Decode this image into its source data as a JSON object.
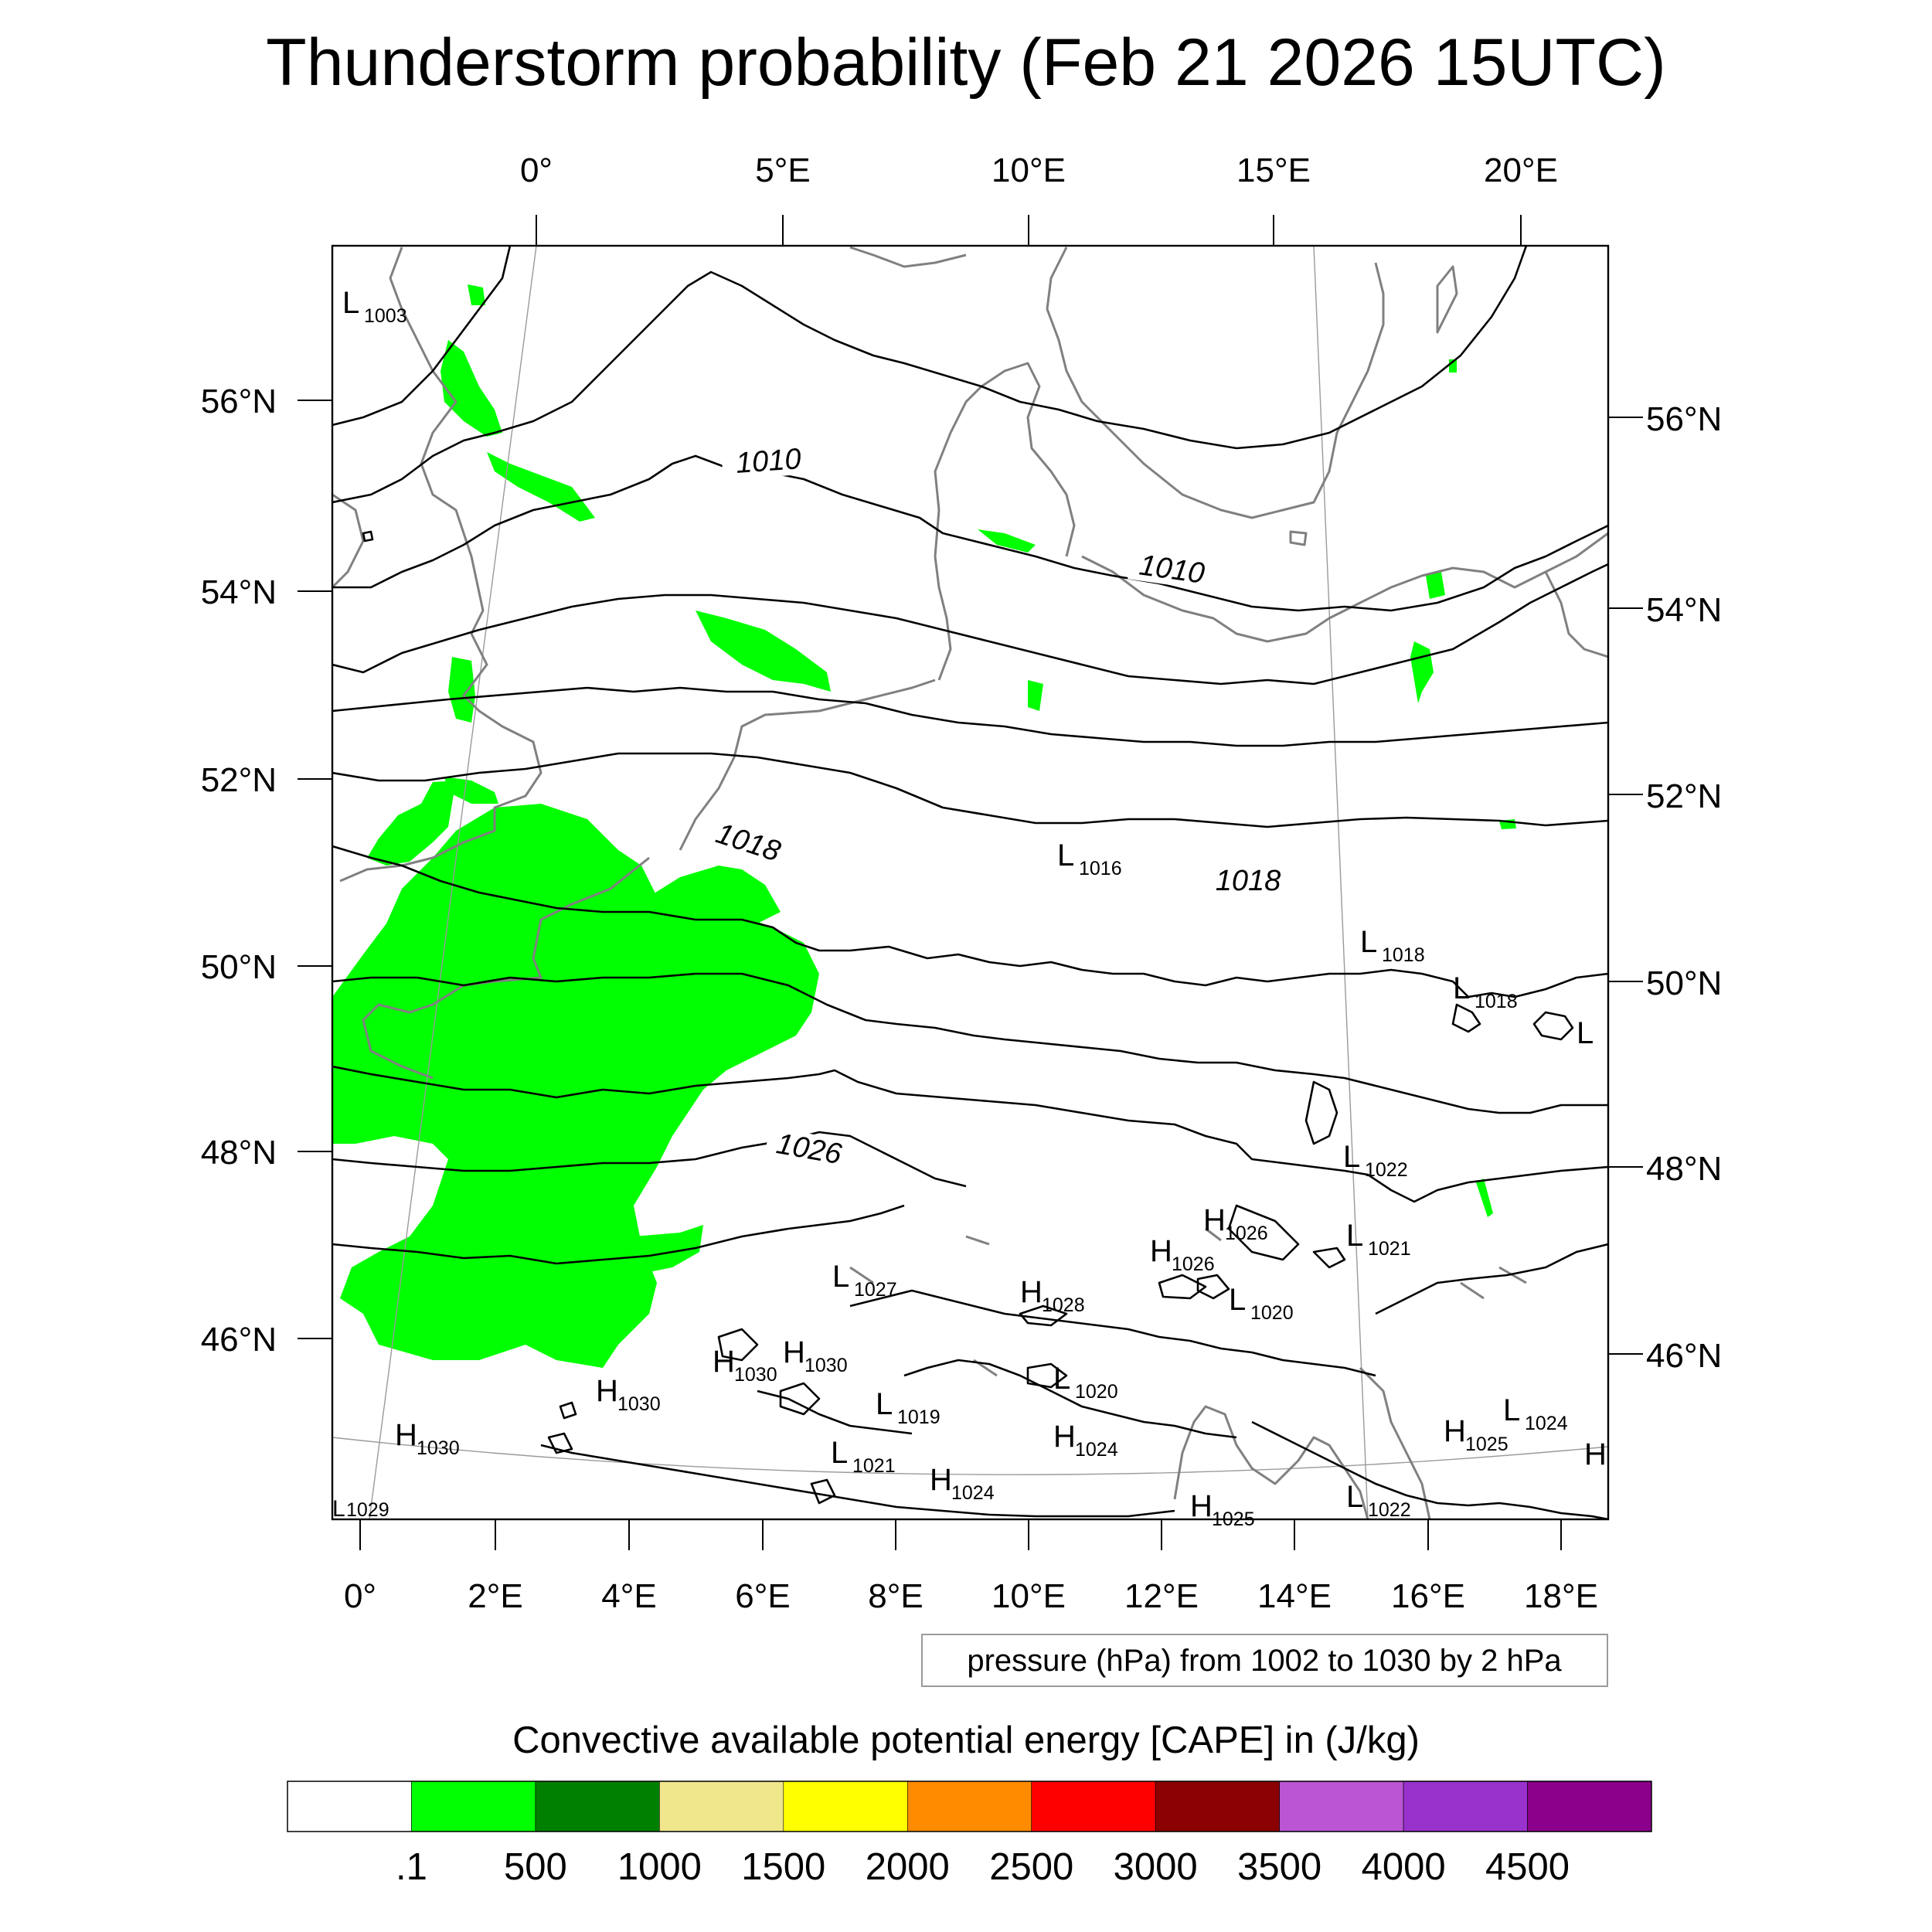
{
  "title": "Thunderstorm probability (Feb 21 2026 15UTC)",
  "top_lon_labels": [
    "0°",
    "5°E",
    "10°E",
    "15°E",
    "20°E"
  ],
  "bottom_lon_labels": [
    "0°",
    "2°E",
    "4°E",
    "6°E",
    "8°E",
    "10°E",
    "12°E",
    "14°E",
    "16°E",
    "18°E"
  ],
  "left_lat_labels": [
    "56°N",
    "54°N",
    "52°N",
    "50°N",
    "48°N",
    "46°N"
  ],
  "right_lat_labels": [
    "56°N",
    "54°N",
    "52°N",
    "50°N",
    "48°N",
    "46°N"
  ],
  "isobar_labels": [
    "1010",
    "1010",
    "1018",
    "1018",
    "1026"
  ],
  "pressure_centers": [
    {
      "type": "L",
      "value": "1003"
    },
    {
      "type": "L",
      "value": "1016"
    },
    {
      "type": "L",
      "value": "1018"
    },
    {
      "type": "L",
      "value": "1018"
    },
    {
      "type": "L",
      "value": ""
    },
    {
      "type": "L",
      "value": "1022"
    },
    {
      "type": "L",
      "value": "1021"
    },
    {
      "type": "H",
      "value": "1026"
    },
    {
      "type": "H",
      "value": "1026"
    },
    {
      "type": "L",
      "value": "1020"
    },
    {
      "type": "L",
      "value": "1027"
    },
    {
      "type": "H",
      "value": "1028"
    },
    {
      "type": "H",
      "value": "1030"
    },
    {
      "type": "H",
      "value": "1030"
    },
    {
      "type": "H",
      "value": "1030"
    },
    {
      "type": "L",
      "value": "1019"
    },
    {
      "type": "L",
      "value": "1020"
    },
    {
      "type": "H",
      "value": "1030"
    },
    {
      "type": "L",
      "value": "1021"
    },
    {
      "type": "H",
      "value": "1024"
    },
    {
      "type": "H",
      "value": "1024"
    },
    {
      "type": "H",
      "value": "1025"
    },
    {
      "type": "L",
      "value": "1024"
    },
    {
      "type": "H",
      "value": ""
    },
    {
      "type": "L",
      "value": "1022"
    },
    {
      "type": "H",
      "value": "1025"
    },
    {
      "type": "L",
      "value": "1029"
    }
  ],
  "info_box": "pressure (hPa) from 1002 to 1030 by 2 hPa",
  "legend": {
    "title": "Convective available potential energy [CAPE] in (J/kg)",
    "colors": [
      "#ffffff",
      "#00ff00",
      "#008000",
      "#f0e68c",
      "#ffff00",
      "#ff8c00",
      "#ff0000",
      "#8b0000",
      "#ba55d3",
      "#9932cc",
      "#8b008b"
    ],
    "labels": [
      ".1",
      "500",
      "1000",
      "1500",
      "2000",
      "2500",
      "3000",
      "3500",
      "4000",
      "4500"
    ]
  }
}
